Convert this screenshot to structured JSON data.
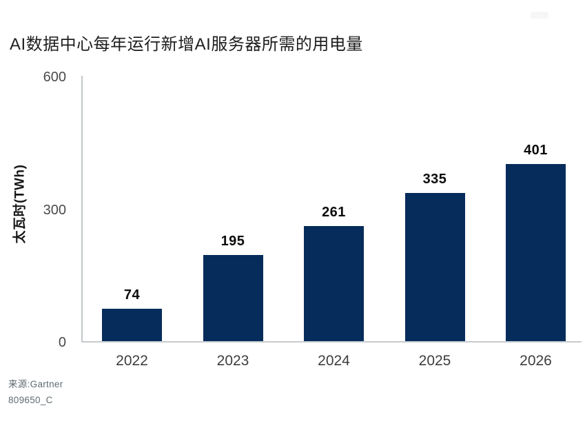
{
  "page": {
    "background": "#ffffff"
  },
  "header": {
    "title": "AI数据中心每年运行新增AI服务器所需的用电量"
  },
  "chart_data": {
    "type": "bar",
    "title": "AI数据中心每年运行新增AI服务器所需的用电量",
    "categories": [
      "2022",
      "2023",
      "2024",
      "2025",
      "2026"
    ],
    "values": [
      74,
      195,
      261,
      335,
      401
    ],
    "xlabel": "",
    "ylabel": "太瓦时(TWh)",
    "ylim": [
      0,
      600
    ],
    "yticks": [
      0,
      300,
      600
    ],
    "grid": false,
    "legend": "none",
    "data_labels": true,
    "bar_color": "#052C5B",
    "axis_color": "#C5C9CB",
    "data_label_color": "#0B0B0B",
    "tick_label_color": "#454545"
  },
  "footer": {
    "source": "来源:Gartner",
    "doc_id": "809650_C"
  }
}
